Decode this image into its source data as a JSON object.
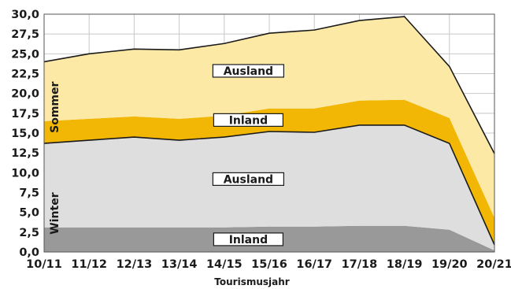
{
  "chart_data": {
    "type": "area",
    "stacked": true,
    "xlabel": "Tourismusjahr",
    "ylabel": "",
    "ylim": [
      0,
      30
    ],
    "yticks": [
      "0,0",
      "2,5",
      "5,0",
      "7,5",
      "10,0",
      "12,5",
      "15,0",
      "17,5",
      "20,0",
      "22,5",
      "25,0",
      "27,5",
      "30,0"
    ],
    "categories": [
      "10/11",
      "11/12",
      "12/13",
      "13/14",
      "14/15",
      "15/16",
      "16/17",
      "17/18",
      "18/19",
      "19/20",
      "20/21"
    ],
    "grid": true,
    "series": [
      {
        "group": "Winter",
        "name": "Inland",
        "color": "#999999",
        "values": [
          3.1,
          3.1,
          3.1,
          3.1,
          3.1,
          3.2,
          3.2,
          3.3,
          3.3,
          2.8,
          0.2
        ]
      },
      {
        "group": "Winter",
        "name": "Ausland",
        "color": "#dedede",
        "values": [
          10.6,
          11.0,
          11.4,
          11.0,
          11.4,
          12.0,
          11.9,
          12.7,
          12.7,
          10.9,
          0.7
        ]
      },
      {
        "group": "Sommer",
        "name": "Inland",
        "color": "#f2b705",
        "values": [
          2.8,
          2.7,
          2.6,
          2.7,
          2.7,
          2.9,
          3.0,
          3.1,
          3.2,
          3.2,
          3.4
        ]
      },
      {
        "group": "Sommer",
        "name": "Ausland",
        "color": "#fde9a6",
        "values": [
          7.5,
          8.2,
          8.5,
          8.7,
          9.1,
          9.5,
          9.9,
          10.1,
          10.5,
          6.5,
          8.1
        ]
      }
    ],
    "band_labels": [
      {
        "text": "Ausland",
        "series": 3
      },
      {
        "text": "Inland",
        "series": 2
      },
      {
        "text": "Ausland",
        "series": 1
      },
      {
        "text": "Inland",
        "series": 0
      }
    ],
    "season_labels": [
      "Sommer",
      "Winter"
    ]
  }
}
